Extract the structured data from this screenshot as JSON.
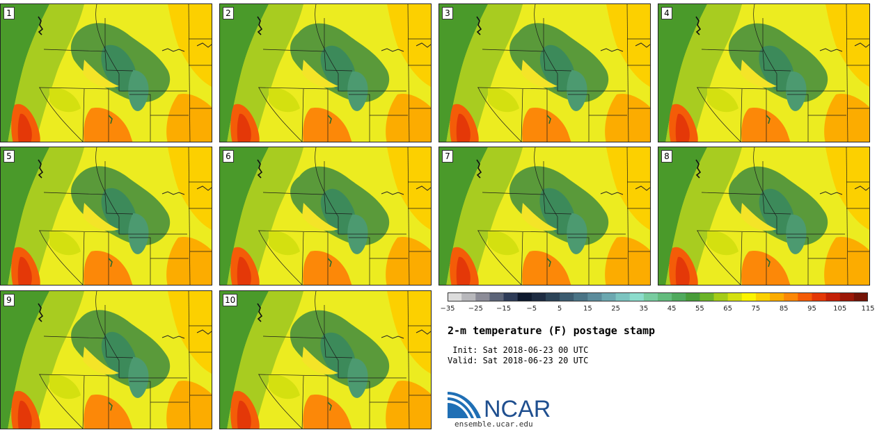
{
  "panels": [
    {
      "label": "1"
    },
    {
      "label": "2"
    },
    {
      "label": "3"
    },
    {
      "label": "4"
    },
    {
      "label": "5"
    },
    {
      "label": "6"
    },
    {
      "label": "7"
    },
    {
      "label": "8"
    },
    {
      "label": "9"
    },
    {
      "label": "10"
    }
  ],
  "colorbar": {
    "colors": [
      "#dcdcdc",
      "#b8b8bc",
      "#8c8c98",
      "#5c6478",
      "#2e3c58",
      "#0f1a2e",
      "#1e2c42",
      "#2c4458",
      "#3c5c70",
      "#4a7486",
      "#5c8c9c",
      "#6ca8b0",
      "#7cc4c0",
      "#8cdccc",
      "#78cca0",
      "#64bc7e",
      "#50aa5e",
      "#489c3a",
      "#6cb428",
      "#a4cc18",
      "#d4e010",
      "#fcf400",
      "#fcd000",
      "#fcac00",
      "#fc8808",
      "#f45c08",
      "#e43808",
      "#c42008",
      "#9c1808",
      "#741408"
    ],
    "tick_labels": [
      "−35",
      "−25",
      "−15",
      "−5",
      "5",
      "15",
      "25",
      "35",
      "45",
      "55",
      "65",
      "75",
      "85",
      "95",
      "105",
      "115"
    ]
  },
  "title": "2-m temperature (F) postage stamp",
  "init_line": " Init: Sat 2018-06-23 00 UTC",
  "valid_line": "Valid: Sat 2018-06-23 20 UTC",
  "logo": {
    "text": "NCAR",
    "url": "ensemble.ucar.edu"
  }
}
